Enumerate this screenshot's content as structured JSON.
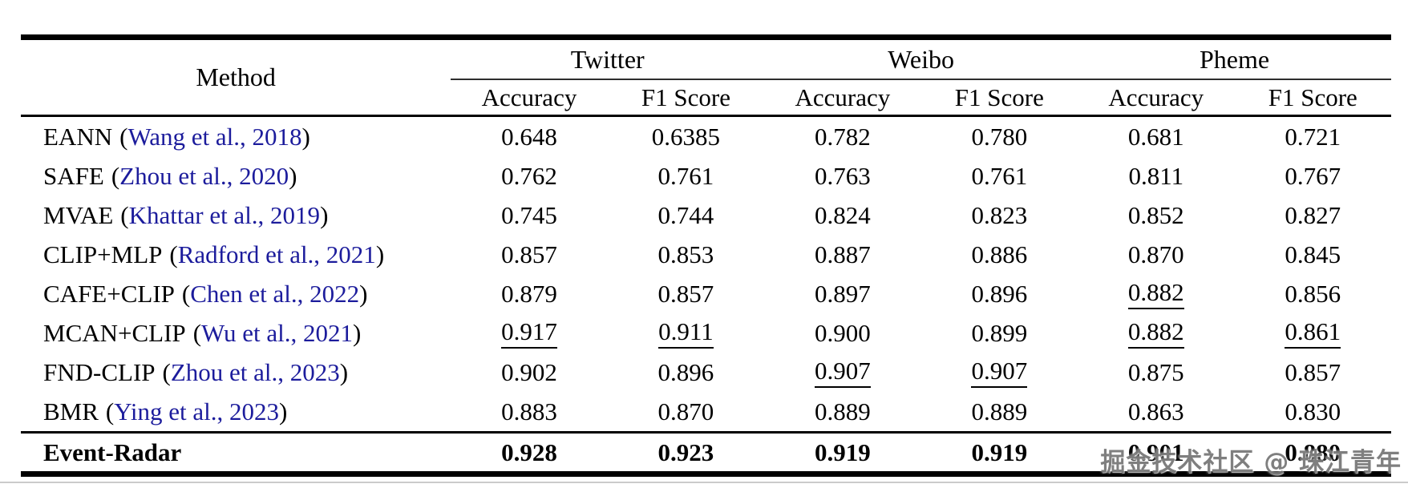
{
  "colors": {
    "citation_blue": "#1c1c9c",
    "text": "#000000",
    "rule": "#000000",
    "watermark_gray": "#686868"
  },
  "watermark": "掘金技术社区 @ 珠江青年",
  "table": {
    "method_header": "Method",
    "citation_open": "(",
    "citation_close": ")",
    "groups": [
      "Twitter",
      "Weibo",
      "Pheme"
    ],
    "sub_headers": [
      "Accuracy",
      "F1 Score",
      "Accuracy",
      "F1 Score",
      "Accuracy",
      "F1 Score"
    ],
    "rows": [
      {
        "method": "EANN",
        "citation": "Wang et al., 2018",
        "values": [
          {
            "v": "0.648"
          },
          {
            "v": "0.6385"
          },
          {
            "v": "0.782"
          },
          {
            "v": "0.780"
          },
          {
            "v": "0.681"
          },
          {
            "v": "0.721"
          }
        ]
      },
      {
        "method": "SAFE",
        "citation": "Zhou et al., 2020",
        "values": [
          {
            "v": "0.762"
          },
          {
            "v": "0.761"
          },
          {
            "v": "0.763"
          },
          {
            "v": "0.761"
          },
          {
            "v": "0.811"
          },
          {
            "v": "0.767"
          }
        ]
      },
      {
        "method": "MVAE",
        "citation": "Khattar et al., 2019",
        "values": [
          {
            "v": "0.745"
          },
          {
            "v": "0.744"
          },
          {
            "v": "0.824"
          },
          {
            "v": "0.823"
          },
          {
            "v": "0.852"
          },
          {
            "v": "0.827"
          }
        ]
      },
      {
        "method": "CLIP+MLP",
        "citation": "Radford et al., 2021",
        "values": [
          {
            "v": "0.857"
          },
          {
            "v": "0.853"
          },
          {
            "v": "0.887"
          },
          {
            "v": "0.886"
          },
          {
            "v": "0.870"
          },
          {
            "v": "0.845"
          }
        ]
      },
      {
        "method": "CAFE+CLIP",
        "citation": "Chen et al., 2022",
        "values": [
          {
            "v": "0.879"
          },
          {
            "v": "0.857"
          },
          {
            "v": "0.897"
          },
          {
            "v": "0.896"
          },
          {
            "v": "0.882",
            "underlined": true
          },
          {
            "v": "0.856"
          }
        ]
      },
      {
        "method": "MCAN+CLIP",
        "citation": "Wu et al., 2021",
        "values": [
          {
            "v": "0.917",
            "underlined": true
          },
          {
            "v": "0.911",
            "underlined": true
          },
          {
            "v": "0.900"
          },
          {
            "v": "0.899"
          },
          {
            "v": "0.882",
            "underlined": true
          },
          {
            "v": "0.861",
            "underlined": true
          }
        ]
      },
      {
        "method": "FND-CLIP",
        "citation": "Zhou et al., 2023",
        "values": [
          {
            "v": "0.902"
          },
          {
            "v": "0.896"
          },
          {
            "v": "0.907",
            "underlined": true
          },
          {
            "v": "0.907",
            "underlined": true
          },
          {
            "v": "0.875"
          },
          {
            "v": "0.857"
          }
        ]
      },
      {
        "method": "BMR",
        "citation": "Ying et al., 2023",
        "values": [
          {
            "v": "0.883"
          },
          {
            "v": "0.870"
          },
          {
            "v": "0.889"
          },
          {
            "v": "0.889"
          },
          {
            "v": "0.863"
          },
          {
            "v": "0.830"
          }
        ]
      }
    ],
    "highlight_row": {
      "method": "Event-Radar",
      "values": [
        {
          "v": "0.928"
        },
        {
          "v": "0.923"
        },
        {
          "v": "0.919"
        },
        {
          "v": "0.919"
        },
        {
          "v": "0.901"
        },
        {
          "v": "0.880"
        }
      ]
    }
  }
}
